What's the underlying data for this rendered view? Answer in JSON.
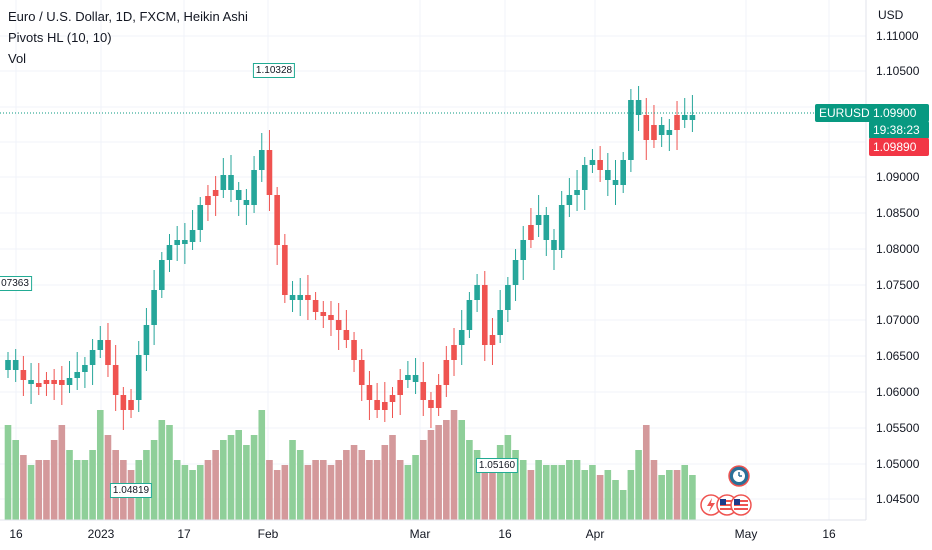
{
  "legend": {
    "symbol_line": "Euro / U.S. Dollar, 1D, FXCM, Heikin Ashi",
    "indicator_line": "Pivots HL (10, 10)",
    "volume_line": "Vol"
  },
  "price_axis": {
    "currency": "USD",
    "ticks": [
      "1.11000",
      "1.10500",
      "1.09000",
      "1.08500",
      "1.08000",
      "1.07500",
      "1.07000",
      "1.06500",
      "1.06000",
      "1.05500",
      "1.05000",
      "1.04500"
    ]
  },
  "time_axis": {
    "labels": [
      "16",
      "2023",
      "17",
      "Feb",
      "Mar",
      "16",
      "Apr",
      "May",
      "16"
    ]
  },
  "price_tags": {
    "symbol": "EURUSD",
    "last_price": "1.09900",
    "countdown": "19:38:23",
    "second_price": "1.09890"
  },
  "pivot_labels": {
    "high_left": "07363",
    "high_feb": "1.10328",
    "low_jan": "1.04819",
    "low_mar": "1.05160"
  },
  "colors": {
    "up": "#26a69a",
    "down": "#ef5350",
    "up_volume": "#8fcf99",
    "down_volume": "#d4999b",
    "tag_green": "#089981",
    "tag_red": "#f23645",
    "text": "#131722",
    "grid": "#f0f3fa"
  },
  "icons": [
    "clock-icon",
    "lightning-icon",
    "us-flag-icon",
    "eu-flag-icon"
  ],
  "chart_data": {
    "type": "candlestick",
    "style": "Heikin Ashi",
    "bars_up": [
      1,
      1,
      0,
      1,
      0,
      0,
      0,
      0,
      1,
      1,
      1,
      1,
      1,
      0,
      0,
      0,
      0,
      1,
      1,
      1,
      1,
      1,
      1,
      1,
      1,
      1,
      0,
      0,
      1,
      1,
      1,
      1,
      1,
      1,
      0,
      0,
      0,
      1,
      1,
      0,
      0,
      0,
      0,
      0,
      0,
      0,
      0,
      0,
      0,
      0,
      0,
      0,
      1,
      1,
      0,
      0,
      0,
      0,
      0,
      1,
      1,
      1,
      0,
      0,
      1,
      1,
      1,
      1,
      0,
      1,
      1,
      1,
      1,
      1,
      1,
      1,
      1,
      0,
      1,
      1,
      1,
      1,
      1,
      0,
      0,
      1,
      1,
      0,
      1,
      1,
      1
    ],
    "ylim": [
      1.042,
      1.112
    ]
  }
}
